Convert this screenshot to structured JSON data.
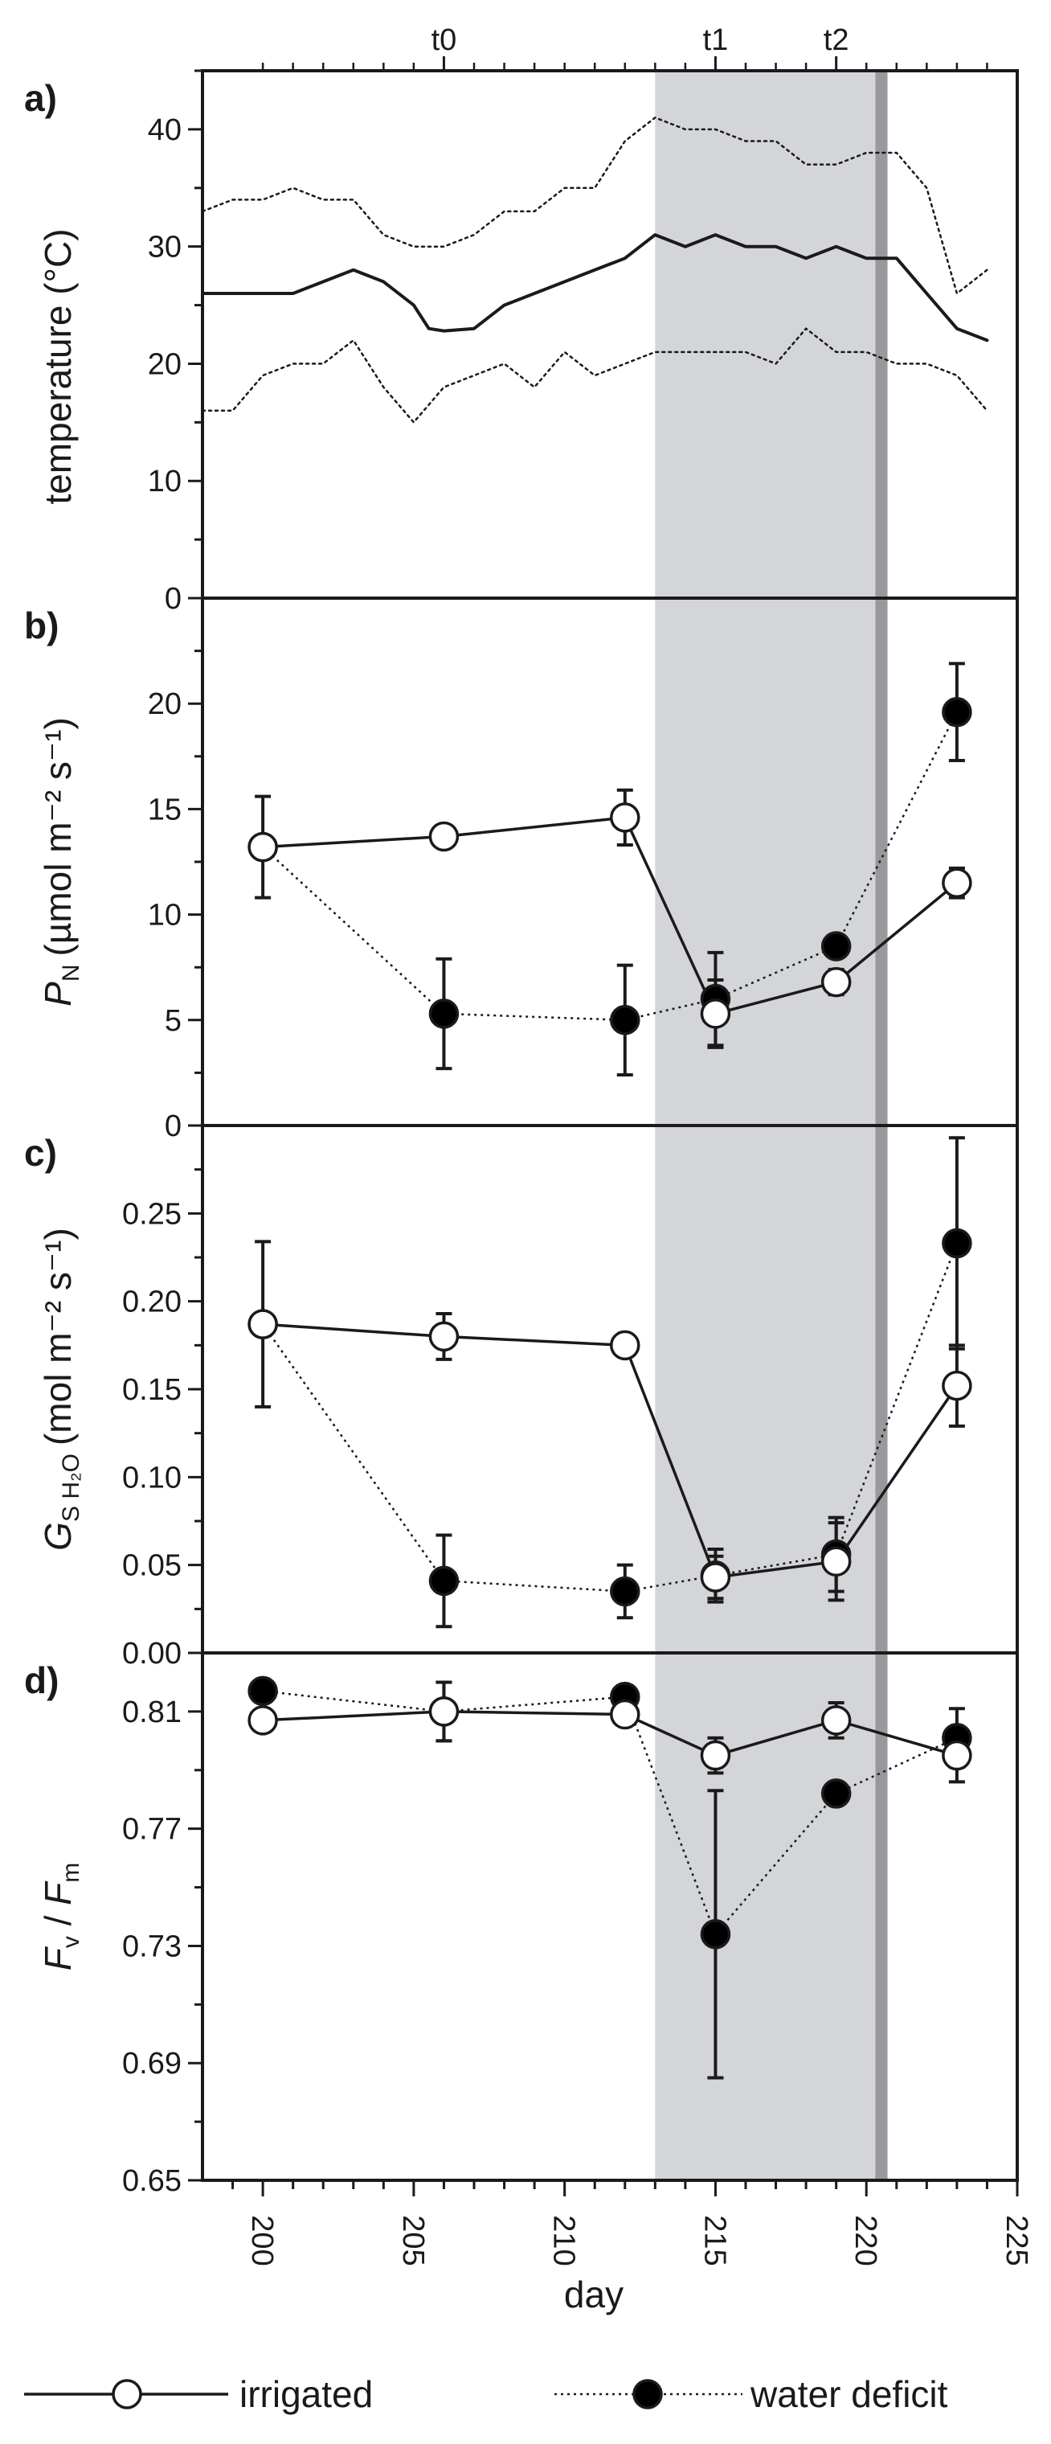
{
  "chart_data": {
    "type": "line",
    "shared_x": {
      "label": "day",
      "ticks": [
        200,
        205,
        210,
        215,
        220,
        225
      ],
      "range": [
        198,
        225
      ],
      "top_markers": [
        {
          "label": "t0",
          "day": 206
        },
        {
          "label": "t1",
          "day": 215
        },
        {
          "label": "t2",
          "day": 219
        }
      ]
    },
    "shaded_period": {
      "light": [
        213,
        220.3
      ],
      "dark": [
        220.3,
        220.7
      ]
    },
    "panels": [
      {
        "letter": "a)",
        "ylabel": "temperature (°C)",
        "ylim": [
          0,
          45
        ],
        "yticks": [
          0,
          10,
          20,
          30,
          40
        ],
        "series": [
          {
            "name": "mean",
            "style": "solid",
            "x": [
              198,
              200,
              201,
              202,
              203,
              204,
              205,
              205.5,
              206,
              207,
              208,
              209,
              210,
              211,
              212,
              213,
              214,
              215,
              216,
              217,
              218,
              219,
              220,
              221,
              222,
              223,
              224
            ],
            "y": [
              26,
              26,
              26,
              27,
              28,
              27,
              25,
              23,
              22.8,
              23,
              25,
              26,
              27,
              28,
              29,
              31,
              30,
              31,
              30,
              30,
              29,
              30,
              29,
              29,
              26,
              23,
              22
            ]
          },
          {
            "name": "max",
            "style": "dotted",
            "x": [
              198,
              199,
              200,
              201,
              202,
              203,
              204,
              205,
              206,
              207,
              208,
              209,
              210,
              211,
              212,
              213,
              214,
              215,
              216,
              217,
              218,
              219,
              220,
              221,
              222,
              223,
              224
            ],
            "y": [
              33,
              34,
              34,
              35,
              34,
              34,
              31,
              30,
              30,
              31,
              33,
              33,
              35,
              35,
              39,
              41,
              40,
              40,
              39,
              39,
              37,
              37,
              38,
              38,
              35,
              26,
              28
            ]
          },
          {
            "name": "min",
            "style": "dotted",
            "x": [
              198,
              199,
              200,
              201,
              202,
              203,
              204,
              205,
              206,
              207,
              208,
              209,
              210,
              211,
              212,
              213,
              214,
              215,
              216,
              217,
              218,
              219,
              220,
              221,
              222,
              223,
              224
            ],
            "y": [
              16,
              16,
              19,
              20,
              20,
              22,
              18,
              15,
              18,
              19,
              20,
              18,
              21,
              19,
              20,
              21,
              21,
              21,
              21,
              20,
              23,
              21,
              21,
              20,
              20,
              19,
              16
            ]
          }
        ]
      },
      {
        "letter": "b)",
        "ylabel_main": "P",
        "ylabel_sub": "N",
        "ylabel_unit": "(µmol m⁻² s⁻¹)",
        "ylim": [
          0,
          25
        ],
        "yticks": [
          0,
          5,
          10,
          15,
          20
        ],
        "series": [
          {
            "name": "irrigated",
            "x": [
              200,
              206,
              212,
              215,
              219,
              223
            ],
            "y": [
              13.2,
              13.7,
              14.6,
              5.3,
              6.8,
              11.5
            ],
            "err": [
              0.3,
              0.5,
              1.3,
              1.6,
              0.6,
              0.7
            ]
          },
          {
            "name": "water deficit",
            "x": [
              200,
              206,
              212,
              215,
              219,
              223
            ],
            "y": [
              13.2,
              5.3,
              5.0,
              6.0,
              8.5,
              19.6
            ],
            "err": [
              2.4,
              2.6,
              2.6,
              2.2,
              0.3,
              2.3
            ]
          }
        ]
      },
      {
        "letter": "c)",
        "ylabel_main": "G",
        "ylabel_sub": "S H₂O",
        "ylabel_unit": "(mol m⁻² s⁻¹)",
        "ylim": [
          0,
          0.3
        ],
        "yticks": [
          "0.00",
          "0.05",
          "0.10",
          "0.15",
          "0.20",
          "0.25"
        ],
        "series": [
          {
            "name": "irrigated",
            "x": [
              200,
              206,
              212,
              215,
              219,
              223
            ],
            "y": [
              0.187,
              0.18,
              0.175,
              0.043,
              0.052,
              0.152
            ],
            "err": [
              0.003,
              0.013,
              0.006,
              0.012,
              0.022,
              0.023
            ]
          },
          {
            "name": "water deficit",
            "x": [
              200,
              206,
              212,
              215,
              219,
              223
            ],
            "y": [
              0.187,
              0.041,
              0.035,
              0.044,
              0.056,
              0.233
            ],
            "err": [
              0.047,
              0.026,
              0.015,
              0.015,
              0.021,
              0.06
            ]
          }
        ]
      },
      {
        "letter": "d)",
        "ylabel_main": "F",
        "ylabel_sub": "v",
        "ylabel_slash": " / ",
        "ylabel_main2": "F",
        "ylabel_sub2": "m",
        "ylim": [
          0.65,
          0.83
        ],
        "yticks": [
          "0.65",
          "0.69",
          "0.73",
          "0.77",
          "0.81"
        ],
        "series": [
          {
            "name": "irrigated",
            "x": [
              200,
              206,
              212,
              215,
              219,
              223
            ],
            "y": [
              0.807,
              0.81,
              0.809,
              0.795,
              0.807,
              0.795
            ],
            "err": [
              0.002,
              0.01,
              0.003,
              0.006,
              0.006,
              0.009
            ]
          },
          {
            "name": "water deficit",
            "x": [
              200,
              206,
              212,
              215,
              219,
              223
            ],
            "y": [
              0.817,
              0.81,
              0.815,
              0.734,
              0.782,
              0.801
            ],
            "err": [
              0.002,
              0.01,
              0.003,
              0.049,
              0.002,
              0.01
            ]
          }
        ]
      }
    ],
    "legend": {
      "placement": "bottom",
      "items": [
        {
          "label": "irrigated",
          "line": "solid",
          "marker": "open-circle"
        },
        {
          "label": "water deficit",
          "line": "dotted",
          "marker": "filled-circle"
        }
      ]
    }
  }
}
